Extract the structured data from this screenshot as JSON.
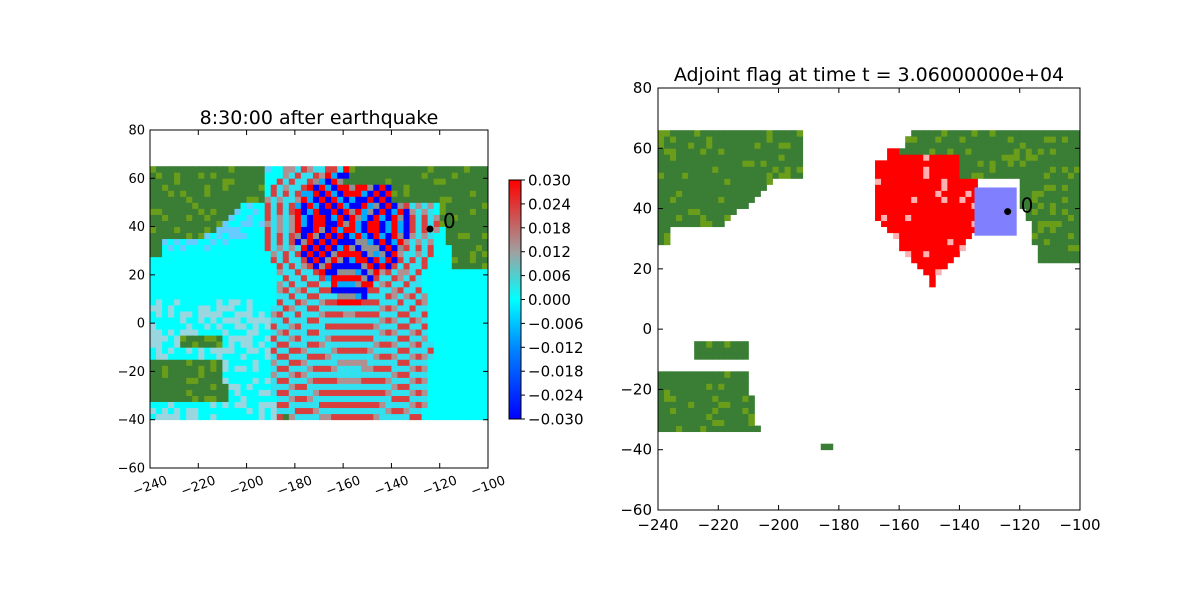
{
  "chart_data": [
    {
      "type": "heatmap",
      "title": "8:30:00 after earthquake",
      "xlabel": "",
      "ylabel": "",
      "xlim": [
        -240,
        -100
      ],
      "ylim": [
        -60,
        80
      ],
      "xticks": [
        "−240",
        "−220",
        "−200",
        "−180",
        "−160",
        "−140",
        "−120",
        "−100"
      ],
      "yticks": [
        "−60",
        "−40",
        "−20",
        "0",
        "20",
        "40",
        "60",
        "80"
      ],
      "xtick_values": [
        -240,
        -220,
        -200,
        -180,
        -160,
        -140,
        -120,
        -100
      ],
      "ytick_values": [
        -60,
        -40,
        -20,
        0,
        20,
        40,
        60,
        80
      ],
      "colorbar": {
        "range": [
          -0.03,
          0.03
        ],
        "tick_values": [
          0.03,
          0.024,
          0.018,
          0.012,
          0.006,
          0.0,
          -0.006,
          -0.012,
          -0.018,
          -0.024,
          -0.03
        ],
        "tick_labels": [
          "0.030",
          "0.024",
          "0.018",
          "0.012",
          "0.006",
          "0.000",
          "−0.006",
          "−0.012",
          "−0.018",
          "−0.024",
          "−0.030"
        ]
      },
      "data_extent": {
        "x": [
          -240,
          -100
        ],
        "y": [
          -40,
          65
        ]
      },
      "marker": {
        "x": -124,
        "y": 39,
        "label": "0"
      },
      "colors": {
        "land": "#3a7d35",
        "coast": "#6a9e1a",
        "ocean": "#00ffff",
        "wave_pos": "#ff0000",
        "wave_neg": "#0000ff"
      }
    },
    {
      "type": "heatmap",
      "title": "Adjoint flag at time t = 3.06000000e+04",
      "xlabel": "",
      "ylabel": "",
      "xlim": [
        -240,
        -100
      ],
      "ylim": [
        -60,
        80
      ],
      "xticks": [
        "−240",
        "−220",
        "−200",
        "−180",
        "−160",
        "−140",
        "−120",
        "−100"
      ],
      "yticks": [
        "−60",
        "−40",
        "−20",
        "0",
        "20",
        "40",
        "60",
        "80"
      ],
      "xtick_values": [
        -240,
        -220,
        -200,
        -180,
        -160,
        -140,
        -120,
        -100
      ],
      "ytick_values": [
        -60,
        -40,
        -20,
        0,
        20,
        40,
        60,
        80
      ],
      "flag_region": {
        "center_x": -151,
        "center_y": 41,
        "x_range": [
          -168,
          -134
        ],
        "y_range": [
          15,
          60
        ]
      },
      "box": {
        "x": [
          -135,
          -121
        ],
        "y": [
          31,
          47
        ],
        "color": "#8080ff"
      },
      "marker": {
        "x": -124,
        "y": 39,
        "label": "0"
      },
      "colors": {
        "land": "#3a7d35",
        "coast": "#6a9e1a",
        "flag": "#ff0000"
      }
    }
  ]
}
